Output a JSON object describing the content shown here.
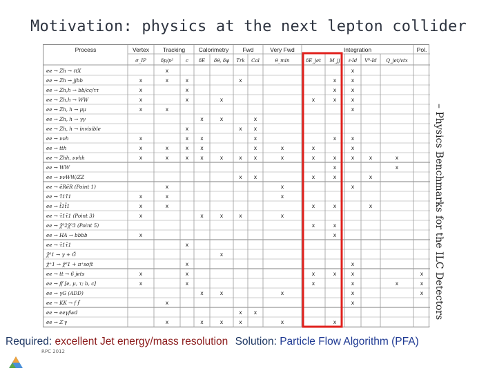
{
  "title": "Motivation: physics at the next lepton collider",
  "side_label": "– Physics Benchmarks for the ILC Detectors",
  "footer": "RPC 2012",
  "bottom": {
    "required_key": "Required",
    "required_sep": ": ",
    "required_value": "excellent Jet energy/mass resolution",
    "solution_key": "Solution",
    "solution_sep": ": ",
    "solution_value": "Particle Flow Algorithm (PFA)"
  },
  "colors": {
    "highlight": "#e0201c",
    "grid": "#9a9a9a",
    "text": "#222222"
  },
  "table": {
    "group_headers": [
      "Process",
      "Vertex",
      "Tracking",
      "Calorimetry",
      "Fwd",
      "Very Fwd",
      "Integration",
      "Pol."
    ],
    "columns": [
      "σ_IP",
      "δp/p²",
      "c",
      "δE",
      "δθ, δφ",
      "Trk",
      "Cal",
      "θ_min",
      "δE_jet",
      "M_jj",
      "ℓ-Id",
      "V⁰-Id",
      "Q_jet/vtx",
      ""
    ],
    "highlight_column": 8,
    "rows": [
      {
        "process": "ee → Zh → ℓℓX",
        "marks": [
          "",
          "x",
          "",
          "",
          "",
          "",
          "",
          "",
          "",
          "",
          "x",
          "",
          "",
          ""
        ]
      },
      {
        "process": "ee → Zh → jjbb",
        "marks": [
          "x",
          "x",
          "x",
          "",
          "",
          "x",
          "",
          "",
          "",
          "x",
          "x",
          "",
          "",
          ""
        ]
      },
      {
        "process": "ee → Zh,h → bb/cc/ττ",
        "marks": [
          "x",
          "",
          "x",
          "",
          "",
          "",
          "",
          "",
          "",
          "x",
          "x",
          "",
          "",
          ""
        ]
      },
      {
        "process": "ee → Zh,h → WW",
        "marks": [
          "x",
          "",
          "x",
          "",
          "x",
          "",
          "",
          "",
          "x",
          "x",
          "x",
          "",
          "",
          ""
        ]
      },
      {
        "process": "ee → Zh, h → μμ",
        "marks": [
          "x",
          "x",
          "",
          "",
          "",
          "",
          "",
          "",
          "",
          "",
          "x",
          "",
          "",
          ""
        ]
      },
      {
        "process": "ee → Zh, h → γγ",
        "marks": [
          "",
          "",
          "",
          "x",
          "x",
          "",
          "x",
          "",
          "",
          "",
          "",
          "",
          "",
          ""
        ]
      },
      {
        "process": "ee → Zh, h → invisible",
        "marks": [
          "",
          "",
          "x",
          "",
          "",
          "x",
          "x",
          "",
          "",
          "",
          "",
          "",
          "",
          ""
        ]
      },
      {
        "process": "ee → ννh",
        "marks": [
          "x",
          "",
          "x",
          "x",
          "",
          "",
          "x",
          "",
          "",
          "x",
          "x",
          "",
          "",
          ""
        ]
      },
      {
        "process": "ee → tth",
        "marks": [
          "x",
          "x",
          "x",
          "x",
          "",
          "",
          "x",
          "x",
          "x",
          "",
          "x",
          "",
          "",
          ""
        ]
      },
      {
        "process": "ee → Zhh, ννhh",
        "marks": [
          "x",
          "x",
          "x",
          "x",
          "x",
          "x",
          "x",
          "x",
          "x",
          "x",
          "x",
          "x",
          "x",
          ""
        ]
      },
      {
        "process": "ee → WW",
        "marks": [
          "",
          "",
          "",
          "",
          "",
          "",
          "",
          "",
          "",
          "x",
          "",
          "",
          "x",
          ""
        ]
      },
      {
        "process": "ee → ννWW/ZZ",
        "marks": [
          "",
          "",
          "",
          "",
          "",
          "x",
          "x",
          "",
          "x",
          "x",
          "",
          "x",
          "",
          ""
        ]
      },
      {
        "process": "ee → ẽRẽR (Point 1)",
        "marks": [
          "",
          "x",
          "",
          "",
          "",
          "",
          "",
          "x",
          "",
          "",
          "x",
          "",
          "",
          ""
        ]
      },
      {
        "process": "ee → τ̃1τ̃1",
        "marks": [
          "x",
          "x",
          "",
          "",
          "",
          "",
          "",
          "x",
          "",
          "",
          "",
          "",
          "",
          ""
        ]
      },
      {
        "process": "ee → t̃1t̃1",
        "marks": [
          "x",
          "x",
          "",
          "",
          "",
          "",
          "",
          "",
          "x",
          "x",
          "",
          "x",
          "",
          ""
        ]
      },
      {
        "process": "ee → τ̃1τ̃1 (Point 3)",
        "marks": [
          "x",
          "",
          "",
          "x",
          "x",
          "x",
          "",
          "x",
          "",
          "",
          "",
          "",
          "",
          ""
        ]
      },
      {
        "process": "ee → χ̃⁰2χ̃⁰3 (Point 5)",
        "marks": [
          "",
          "",
          "",
          "",
          "",
          "",
          "",
          "",
          "x",
          "x",
          "",
          "",
          "",
          ""
        ]
      },
      {
        "process": "ee → HA → bbbb",
        "marks": [
          "x",
          "",
          "",
          "",
          "",
          "",
          "",
          "",
          "",
          "x",
          "",
          "",
          "",
          ""
        ]
      },
      {
        "process": "ee → τ̃1τ̃1",
        "marks": [
          "",
          "",
          "x",
          "",
          "",
          "",
          "",
          "",
          "",
          "",
          "",
          "",
          "",
          ""
        ]
      },
      {
        "process": "χ̃⁰1 → γ + G̃",
        "marks": [
          "",
          "",
          "",
          "",
          "x",
          "",
          "",
          "",
          "",
          "",
          "",
          "",
          "",
          ""
        ]
      },
      {
        "process": "χ̃⁺1 → χ̃⁰1 + π⁺soft",
        "marks": [
          "",
          "",
          "x",
          "",
          "",
          "",
          "",
          "",
          "",
          "",
          "x",
          "",
          "",
          ""
        ]
      },
      {
        "process": "ee → tt → 6 jets",
        "marks": [
          "x",
          "",
          "x",
          "",
          "",
          "",
          "",
          "",
          "x",
          "x",
          "x",
          "",
          "",
          "x"
        ]
      },
      {
        "process": "ee → ff [e, μ, τ; b, c]",
        "marks": [
          "x",
          "",
          "x",
          "",
          "",
          "",
          "",
          "",
          "x",
          "",
          "x",
          "",
          "x",
          "x"
        ]
      },
      {
        "process": "ee → γG (ADD)",
        "marks": [
          "",
          "",
          "",
          "x",
          "x",
          "",
          "",
          "x",
          "",
          "",
          "x",
          "",
          "",
          "x"
        ]
      },
      {
        "process": "ee → KK → f f̄",
        "marks": [
          "",
          "x",
          "",
          "",
          "",
          "",
          "",
          "",
          "",
          "",
          "x",
          "",
          "",
          ""
        ]
      },
      {
        "process": "ee → eeγfwd",
        "marks": [
          "",
          "",
          "",
          "",
          "",
          "x",
          "x",
          "",
          "",
          "",
          "",
          "",
          "",
          ""
        ]
      },
      {
        "process": "ee → Z′γ",
        "marks": [
          "",
          "x",
          "",
          "x",
          "x",
          "x",
          "",
          "x",
          "",
          "x",
          "",
          "",
          "",
          ""
        ]
      }
    ],
    "section_breaks_after": [
      9,
      11,
      17,
      20,
      24
    ]
  }
}
